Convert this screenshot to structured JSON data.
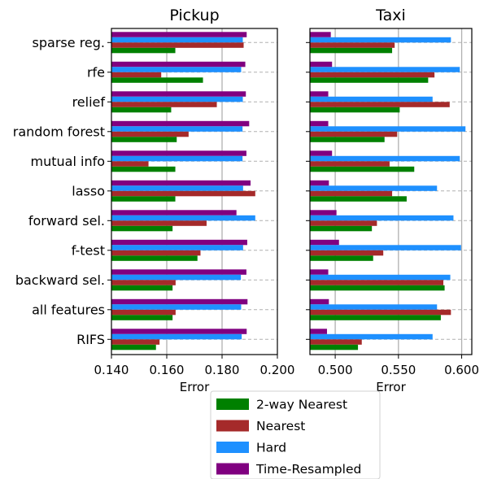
{
  "chart_data": [
    {
      "type": "bar",
      "orientation": "horizontal",
      "title": "Pickup",
      "xlabel": "Error",
      "xlim": [
        0.14,
        0.2
      ],
      "xticks": [
        "0.140",
        "0.160",
        "0.180",
        "0.200"
      ],
      "xtick_values": [
        0.14,
        0.16,
        0.18,
        0.2
      ],
      "grid": "x-major solid, y dashed",
      "categories": [
        "sparse reg.",
        "rfe",
        "relief",
        "random forest",
        "mutual info",
        "lasso",
        "forward sel.",
        "f-test",
        "backward sel.",
        "all features",
        "RIFS"
      ],
      "series": [
        {
          "name": "Time-Resampled",
          "color": "#800080",
          "values": [
            0.1889,
            0.1884,
            0.1886,
            0.1898,
            0.1888,
            0.1903,
            0.1852,
            0.1891,
            0.1888,
            0.1892,
            0.1889
          ]
        },
        {
          "name": "Hard",
          "color": "#1e90ff",
          "values": [
            0.1875,
            0.1869,
            0.1875,
            0.1874,
            0.1874,
            0.1876,
            0.192,
            0.1876,
            0.1868,
            0.1869,
            0.1871
          ]
        },
        {
          "name": "Nearest",
          "color": "#a52a2a",
          "values": [
            0.1878,
            0.158,
            0.1781,
            0.1679,
            0.1534,
            0.192,
            0.1744,
            0.1722,
            0.1632,
            0.1632,
            0.1574
          ]
        },
        {
          "name": "2-way Nearest",
          "color": "#008000",
          "values": [
            0.1631,
            0.1731,
            0.1616,
            0.1636,
            0.1631,
            0.1631,
            0.1621,
            0.1711,
            0.1621,
            0.1621,
            0.1561
          ]
        }
      ]
    },
    {
      "type": "bar",
      "orientation": "horizontal",
      "title": "Taxi",
      "xlabel": "Error",
      "xlim": [
        0.48,
        0.608
      ],
      "xticks": [
        "0.500",
        "0.550",
        "0.600"
      ],
      "xtick_values": [
        0.5,
        0.55,
        0.6
      ],
      "grid": "x-major solid, y dashed",
      "categories": [
        "sparse reg.",
        "rfe",
        "relief",
        "random forest",
        "mutual info",
        "lasso",
        "forward sel.",
        "f-test",
        "backward sel.",
        "all features",
        "RIFS"
      ],
      "series": [
        {
          "name": "Time-Resampled",
          "color": "#800080",
          "values": [
            0.4965,
            0.4975,
            0.4945,
            0.4945,
            0.4975,
            0.495,
            0.501,
            0.503,
            0.4945,
            0.495,
            0.4935
          ]
        },
        {
          "name": "Hard",
          "color": "#1e90ff",
          "values": [
            0.5915,
            0.5985,
            0.577,
            0.603,
            0.5985,
            0.5805,
            0.5935,
            0.5995,
            0.591,
            0.5805,
            0.577
          ]
        },
        {
          "name": "Nearest",
          "color": "#a52a2a",
          "values": [
            0.547,
            0.5785,
            0.5905,
            0.549,
            0.543,
            0.545,
            0.533,
            0.538,
            0.5855,
            0.5915,
            0.521
          ]
        },
        {
          "name": "2-way Nearest",
          "color": "#008000",
          "values": [
            0.545,
            0.5735,
            0.551,
            0.539,
            0.5625,
            0.5565,
            0.529,
            0.53,
            0.5865,
            0.5835,
            0.518
          ]
        }
      ]
    }
  ],
  "legend": {
    "position": "bottom-center",
    "entries": [
      {
        "label": "2-way Nearest",
        "color": "#008000"
      },
      {
        "label": "Nearest",
        "color": "#a52a2a"
      },
      {
        "label": "Hard",
        "color": "#1e90ff"
      },
      {
        "label": "Time-Resampled",
        "color": "#800080"
      }
    ]
  }
}
